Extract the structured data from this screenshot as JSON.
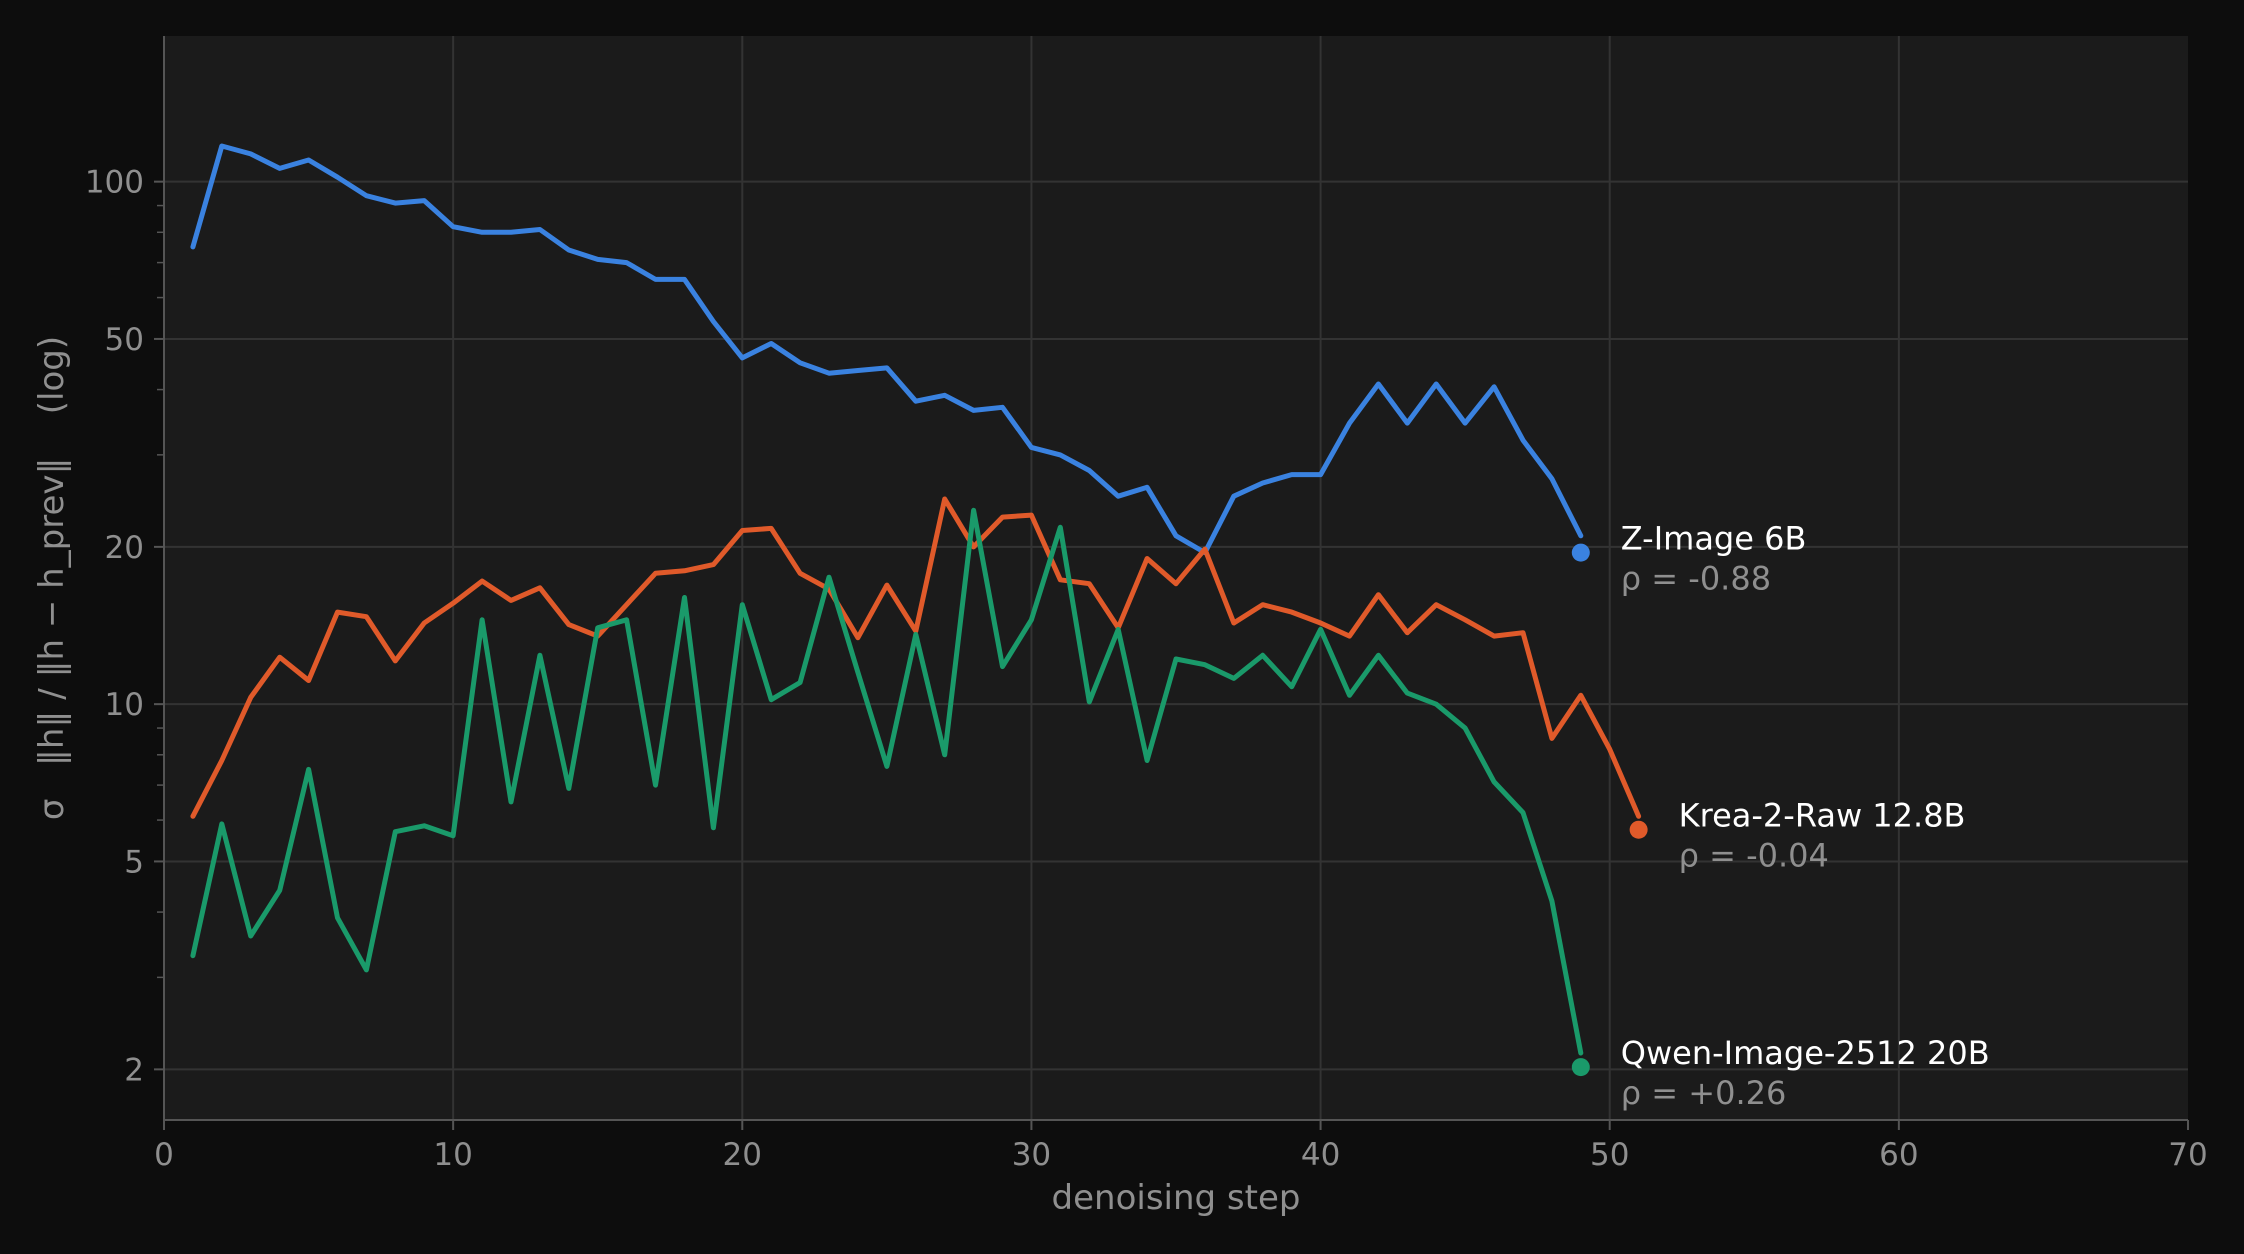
{
  "chart_data": {
    "type": "line",
    "xlabel": "denoising step",
    "ylabel": "σ   ‖h‖ / ‖h − h_prev‖    (log)",
    "xlim": [
      0,
      70
    ],
    "ylim": [
      1.6,
      190
    ],
    "yscale": "log",
    "grid": true,
    "xticks": [
      "0",
      "10",
      "20",
      "30",
      "40",
      "50",
      "60",
      "70"
    ],
    "yticks": [
      "2",
      "5",
      "10",
      "20",
      "50",
      "100"
    ],
    "colors": {
      "background": "#0d0d0d",
      "plot": "#1b1b1b",
      "grid": "#333333",
      "axis": "#555555"
    },
    "series": [
      {
        "name": "Z-Image  6B",
        "annotation": "ρ = -0.88",
        "color": "#3a82e0",
        "x": [
          1,
          2,
          3,
          4,
          5,
          6,
          7,
          8,
          9,
          10,
          11,
          12,
          13,
          14,
          15,
          16,
          17,
          18,
          19,
          20,
          21,
          22,
          23,
          24,
          25,
          26,
          27,
          28,
          29,
          30,
          31,
          32,
          33,
          34,
          35,
          36,
          37,
          38,
          39,
          40,
          41,
          42,
          43,
          44,
          45,
          46,
          47,
          48,
          49
        ],
        "y": [
          75,
          117,
          113,
          106,
          110,
          102,
          94,
          91,
          92,
          82,
          80,
          80,
          81,
          74,
          71,
          70,
          65,
          65,
          54,
          46,
          49,
          45,
          43,
          43.5,
          44,
          38,
          39,
          36.5,
          37,
          31,
          30,
          28,
          25,
          26,
          21,
          19.5,
          25,
          26.5,
          27.5,
          27.5,
          34.5,
          41,
          34.5,
          41,
          34.5,
          40.5,
          32,
          27,
          21
        ],
        "end": {
          "x": 49,
          "y": 19.5
        }
      },
      {
        "name": "Krea-2-Raw  12.8B",
        "annotation": "ρ = -0.04",
        "color": "#e05a2a",
        "x": [
          1,
          2,
          3,
          4,
          5,
          6,
          7,
          8,
          9,
          10,
          11,
          12,
          13,
          14,
          15,
          16,
          17,
          18,
          19,
          20,
          21,
          22,
          23,
          24,
          25,
          26,
          27,
          28,
          29,
          30,
          31,
          32,
          33,
          34,
          35,
          36,
          37,
          38,
          39,
          40,
          41,
          42,
          43,
          44,
          45,
          46,
          47,
          48,
          49,
          50,
          51
        ],
        "y": [
          6.1,
          7.8,
          10.3,
          12.3,
          11.1,
          15,
          14.7,
          12.1,
          14.3,
          15.6,
          17.2,
          15.8,
          16.7,
          14.2,
          13.5,
          15.5,
          17.8,
          18,
          18.5,
          21.5,
          21.7,
          17.8,
          16.6,
          13.4,
          16.9,
          13.8,
          24.7,
          20,
          22.8,
          23,
          17.3,
          17,
          14,
          19,
          17,
          19.8,
          14.3,
          15.5,
          15,
          14.3,
          13.5,
          16.2,
          13.7,
          15.5,
          14.5,
          13.5,
          13.7,
          8.6,
          10.4,
          8.2,
          6.1
        ],
        "end": {
          "x": 51,
          "y": 5.75
        }
      },
      {
        "name": "Qwen-Image-2512  20B",
        "annotation": "ρ = +0.26",
        "color": "#1a9a6a",
        "x": [
          1,
          2,
          3,
          4,
          5,
          6,
          7,
          8,
          9,
          10,
          11,
          12,
          13,
          14,
          15,
          16,
          17,
          18,
          19,
          20,
          21,
          22,
          23,
          24,
          25,
          26,
          27,
          28,
          29,
          30,
          31,
          32,
          33,
          34,
          35,
          36,
          37,
          38,
          39,
          40,
          41,
          42,
          43,
          44,
          45,
          46,
          47,
          48,
          49
        ],
        "y": [
          3.3,
          5.9,
          3.6,
          4.4,
          7.5,
          3.9,
          3.1,
          5.7,
          5.85,
          5.6,
          14.5,
          6.5,
          12.4,
          6.9,
          14,
          14.5,
          7,
          16,
          5.8,
          15.5,
          10.2,
          11,
          17.5,
          11.5,
          7.6,
          13.6,
          8,
          23.5,
          11.8,
          14.5,
          21.8,
          10.1,
          13.9,
          7.8,
          12.2,
          11.9,
          11.2,
          12.4,
          10.8,
          13.9,
          10.4,
          12.4,
          10.5,
          10,
          9,
          7.1,
          6.2,
          4.2,
          2.15
        ],
        "end": {
          "x": 49,
          "y": 2.02
        }
      }
    ]
  }
}
